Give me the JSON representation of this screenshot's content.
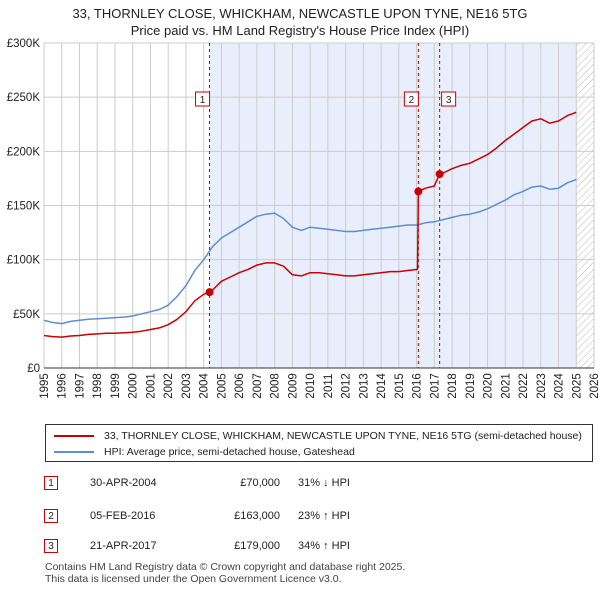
{
  "header": {
    "title_line1": "33, THORNLEY CLOSE, WHICKHAM, NEWCASTLE UPON TYNE, NE16 5TG",
    "title_line2": "Price paid vs. HM Land Registry's House Price Index (HPI)"
  },
  "legend": {
    "property_label": "33, THORNLEY CLOSE, WHICKHAM, NEWCASTLE UPON TYNE, NE16 5TG (semi-detached house)",
    "hpi_label": "HPI: Average price, semi-detached house, Gateshead"
  },
  "transactions": [
    {
      "num": "1",
      "date": "30-APR-2004",
      "price": "£70,000",
      "hpi": "31% ↓ HPI"
    },
    {
      "num": "2",
      "date": "05-FEB-2016",
      "price": "£163,000",
      "hpi": "23% ↑ HPI"
    },
    {
      "num": "3",
      "date": "21-APR-2017",
      "price": "£179,000",
      "hpi": "34% ↑ HPI"
    }
  ],
  "footer": {
    "line1": "Contains HM Land Registry data © Crown copyright and database right 2025.",
    "line2": "This data is licensed under the Open Government Licence v3.0."
  },
  "colors": {
    "property": "#cc0000",
    "hpi": "#5b8fd1",
    "shade": "#e8eefb",
    "grid": "#cccccc",
    "hatch": "#bbbbbb"
  },
  "chart_data": {
    "type": "line",
    "title": "Price paid vs. HM Land Registry's House Price Index (HPI)",
    "xlim": [
      1995,
      2026
    ],
    "ylim": [
      0,
      300000
    ],
    "x_ticks": [
      "1995",
      "1996",
      "1997",
      "1998",
      "1999",
      "2000",
      "2001",
      "2002",
      "2003",
      "2004",
      "2005",
      "2006",
      "2007",
      "2008",
      "2009",
      "2010",
      "2011",
      "2012",
      "2013",
      "2014",
      "2015",
      "2016",
      "2017",
      "2018",
      "2019",
      "2020",
      "2021",
      "2022",
      "2023",
      "2024",
      "2025",
      "2026"
    ],
    "y_ticks": [
      {
        "value": 0,
        "label": "£0"
      },
      {
        "value": 50000,
        "label": "£50K"
      },
      {
        "value": 100000,
        "label": "£100K"
      },
      {
        "value": 150000,
        "label": "£150K"
      },
      {
        "value": 200000,
        "label": "£200K"
      },
      {
        "value": 250000,
        "label": "£250K"
      },
      {
        "value": 300000,
        "label": "£300K"
      }
    ],
    "shaded_from": 2004.33,
    "hatched_from": 2025.0,
    "sales": [
      {
        "num": "1",
        "x": 2004.33,
        "y": 70000
      },
      {
        "num": "2",
        "x": 2016.1,
        "y": 163000
      },
      {
        "num": "3",
        "x": 2017.3,
        "y": 179000
      }
    ],
    "series": [
      {
        "name": "HPI: Average price, semi-detached house, Gateshead",
        "x": [
          1995,
          1995.5,
          1996,
          1996.5,
          1997,
          1997.5,
          1998,
          1998.5,
          1999,
          1999.5,
          2000,
          2000.5,
          2001,
          2001.5,
          2002,
          2002.5,
          2003,
          2003.5,
          2004,
          2004.5,
          2005,
          2005.5,
          2006,
          2006.5,
          2007,
          2007.5,
          2008,
          2008.5,
          2009,
          2009.5,
          2010,
          2010.5,
          2011,
          2011.5,
          2012,
          2012.5,
          2013,
          2013.5,
          2014,
          2014.5,
          2015,
          2015.5,
          2016,
          2016.5,
          2017,
          2017.5,
          2018,
          2018.5,
          2019,
          2019.5,
          2020,
          2020.5,
          2021,
          2021.5,
          2022,
          2022.5,
          2023,
          2023.5,
          2024,
          2024.5,
          2025
        ],
        "values": [
          44000,
          42000,
          41000,
          43000,
          44000,
          45000,
          45500,
          46000,
          46500,
          47000,
          48000,
          50000,
          52000,
          54000,
          58000,
          66000,
          76000,
          90000,
          100000,
          112000,
          120000,
          125000,
          130000,
          135000,
          140000,
          142000,
          143000,
          138000,
          130000,
          127000,
          130000,
          129000,
          128000,
          127000,
          126000,
          126000,
          127000,
          128000,
          129000,
          130000,
          131000,
          132000,
          132000,
          134000,
          135000,
          137000,
          139000,
          141000,
          142000,
          144000,
          147000,
          151000,
          155000,
          160000,
          163000,
          167000,
          168000,
          165000,
          166000,
          171000,
          174000
        ]
      },
      {
        "name": "33, THORNLEY CLOSE, WHICKHAM, NEWCASTLE UPON TYNE, NE16 5TG (semi-detached house)",
        "x": [
          1995,
          1995.5,
          1996,
          1996.5,
          1997,
          1997.5,
          1998,
          1998.5,
          1999,
          1999.5,
          2000,
          2000.5,
          2001,
          2001.5,
          2002,
          2002.5,
          2003,
          2003.5,
          2004,
          2004.33,
          2004.5,
          2005,
          2005.5,
          2006,
          2006.5,
          2007,
          2007.5,
          2008,
          2008.5,
          2009,
          2009.5,
          2010,
          2010.5,
          2011,
          2011.5,
          2012,
          2012.5,
          2013,
          2013.5,
          2014,
          2014.5,
          2015,
          2015.5,
          2016.05,
          2016.1,
          2016.5,
          2017,
          2017.3,
          2017.5,
          2018,
          2018.5,
          2019,
          2019.5,
          2020,
          2020.5,
          2021,
          2021.5,
          2022,
          2022.5,
          2023,
          2023.5,
          2024,
          2024.5,
          2025
        ],
        "values": [
          30000,
          29000,
          28500,
          29500,
          30000,
          31000,
          31500,
          32000,
          32000,
          32500,
          33000,
          34000,
          35500,
          37000,
          40000,
          45000,
          52000,
          62000,
          68000,
          70000,
          72000,
          80000,
          84000,
          88000,
          91000,
          95000,
          97000,
          97000,
          94000,
          86000,
          85000,
          88000,
          88000,
          87000,
          86000,
          85000,
          85000,
          86000,
          87000,
          88000,
          89000,
          89000,
          90000,
          91000,
          163000,
          166000,
          168000,
          179000,
          180000,
          184000,
          187000,
          189000,
          193000,
          197000,
          203000,
          210000,
          216000,
          222000,
          228000,
          230000,
          226000,
          228000,
          233000,
          236000
        ]
      }
    ]
  }
}
